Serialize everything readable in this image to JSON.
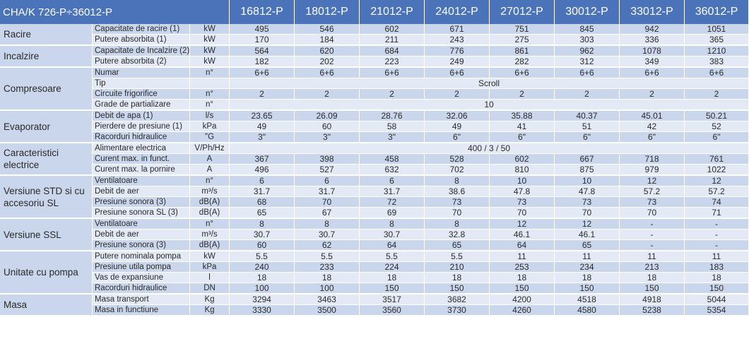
{
  "header": {
    "model_range": "CHA/K 726-P÷36012-P",
    "models": [
      "16812-P",
      "18012-P",
      "21012-P",
      "24012-P",
      "27012-P",
      "30012-P",
      "33012-P",
      "36012-P"
    ]
  },
  "groups": [
    {
      "name": "Racire",
      "rows": [
        {
          "param": "Capacitate de racire (1)",
          "unit": "kW",
          "values": [
            "495",
            "546",
            "602",
            "671",
            "751",
            "845",
            "942",
            "1051"
          ]
        },
        {
          "param": "Putere absorbita (1)",
          "unit": "kW",
          "values": [
            "170",
            "184",
            "211",
            "243",
            "275",
            "303",
            "336",
            "365"
          ]
        }
      ]
    },
    {
      "name": "Incalzire",
      "rows": [
        {
          "param": "Capacitate de Incalzire (2)",
          "unit": "kW",
          "values": [
            "564",
            "620",
            "684",
            "776",
            "861",
            "962",
            "1078",
            "1210"
          ]
        },
        {
          "param": "Putere absorbita (2)",
          "unit": "kW",
          "values": [
            "182",
            "202",
            "223",
            "249",
            "282",
            "312",
            "349",
            "383"
          ]
        }
      ]
    },
    {
      "name": "Compresoare",
      "rows": [
        {
          "param": "Numar",
          "unit": "n°",
          "values": [
            "6+6",
            "6+6",
            "6+6",
            "6+6",
            "6+6",
            "6+6",
            "6+6",
            "6+6"
          ]
        },
        {
          "param": "Tip",
          "unit": "",
          "span": "Scroll"
        },
        {
          "param": "Circuite frigorifice",
          "unit": "n°",
          "values": [
            "2",
            "2",
            "2",
            "2",
            "2",
            "2",
            "2",
            "2"
          ]
        },
        {
          "param": "Grade de partializare",
          "unit": "n°",
          "span": "10"
        }
      ]
    },
    {
      "name": "Evaporator",
      "rows": [
        {
          "param": "Debit de apa (1)",
          "unit": "l/s",
          "values": [
            "23.65",
            "26.09",
            "28.76",
            "32.06",
            "35.88",
            "40.37",
            "45.01",
            "50.21"
          ]
        },
        {
          "param": "Pierdere de presiune (1)",
          "unit": "kPa",
          "values": [
            "49",
            "60",
            "58",
            "49",
            "41",
            "51",
            "42",
            "52"
          ]
        },
        {
          "param": "Racorduri hidraulice",
          "unit": "\"G",
          "values": [
            "3\"",
            "3\"",
            "3\"",
            "6\"",
            "6\"",
            "6\"",
            "6\"",
            "6\""
          ]
        }
      ]
    },
    {
      "name": "Caracteristici electrice",
      "rows": [
        {
          "param": "Alimentare electrica",
          "unit": "V/Ph/Hz",
          "span": "400 / 3 / 50"
        },
        {
          "param": "Curent max. in funct.",
          "unit": "A",
          "values": [
            "367",
            "398",
            "458",
            "528",
            "602",
            "667",
            "718",
            "761"
          ]
        },
        {
          "param": "Curent max. la pornire",
          "unit": "A",
          "values": [
            "496",
            "527",
            "632",
            "702",
            "810",
            "875",
            "979",
            "1022"
          ]
        }
      ]
    },
    {
      "name": "Versiune STD si cu accesoriu SL",
      "rows": [
        {
          "param": "Ventilatoare",
          "unit": "n°",
          "values": [
            "6",
            "6",
            "6",
            "8",
            "10",
            "10",
            "12",
            "12"
          ]
        },
        {
          "param": "Debit de aer",
          "unit": "m³/s",
          "values": [
            "31.7",
            "31.7",
            "31.7",
            "38.6",
            "47.8",
            "47.8",
            "57.2",
            "57.2"
          ]
        },
        {
          "param": "Presiune sonora (3)",
          "unit": "dB(A)",
          "values": [
            "68",
            "70",
            "72",
            "73",
            "73",
            "73",
            "73",
            "74"
          ]
        },
        {
          "param": "Presiune sonora SL (3)",
          "unit": "dB(A)",
          "values": [
            "65",
            "67",
            "69",
            "70",
            "70",
            "70",
            "70",
            "71"
          ]
        }
      ]
    },
    {
      "name": "Versiune SSL",
      "rows": [
        {
          "param": "Ventilatoare",
          "unit": "n°",
          "values": [
            "8",
            "8",
            "8",
            "8",
            "12",
            "12",
            "-",
            "-"
          ]
        },
        {
          "param": "Debit de aer",
          "unit": "m³/s",
          "values": [
            "30.7",
            "30.7",
            "30.7",
            "32.8",
            "46.1",
            "46.1",
            "-",
            "-"
          ]
        },
        {
          "param": "Presiune sonora (3)",
          "unit": "dB(A)",
          "values": [
            "60",
            "62",
            "64",
            "65",
            "64",
            "65",
            "-",
            "-"
          ]
        }
      ]
    },
    {
      "name": "Unitate cu pompa",
      "rows": [
        {
          "param": "Putere nominala pompa",
          "unit": "kW",
          "values": [
            "5.5",
            "5.5",
            "5.5",
            "5.5",
            "11",
            "11",
            "11",
            "11"
          ]
        },
        {
          "param": "Presiune utila pompa",
          "unit": "kPa",
          "values": [
            "240",
            "233",
            "224",
            "210",
            "253",
            "234",
            "213",
            "183"
          ]
        },
        {
          "param": "Vas de expansiune",
          "unit": "l",
          "values": [
            "18",
            "18",
            "18",
            "18",
            "18",
            "18",
            "18",
            "18"
          ]
        },
        {
          "param": "Racorduri hidraulice",
          "unit": "DN",
          "values": [
            "100",
            "100",
            "150",
            "150",
            "150",
            "150",
            "150",
            "150"
          ]
        }
      ]
    },
    {
      "name": "Masa",
      "rows": [
        {
          "param": "Masa transport",
          "unit": "Kg",
          "values": [
            "3294",
            "3463",
            "3517",
            "3682",
            "4200",
            "4518",
            "4918",
            "5044"
          ]
        },
        {
          "param": "Masa in functiune",
          "unit": "Kg",
          "values": [
            "3330",
            "3500",
            "3560",
            "3730",
            "4260",
            "4580",
            "5238",
            "5354"
          ]
        }
      ]
    }
  ]
}
